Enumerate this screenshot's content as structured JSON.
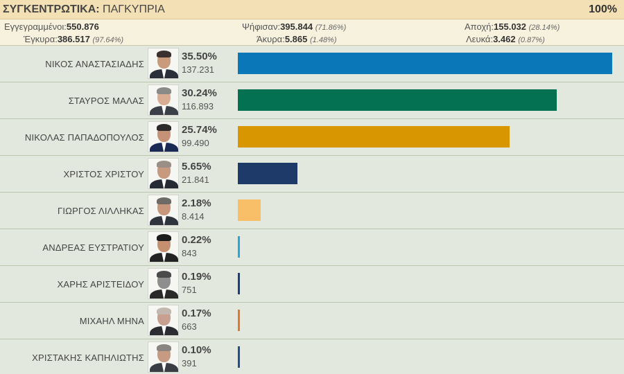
{
  "header": {
    "title_bold": "ΣΥΓΚΕΝΤΡΩΤΙΚΑ:",
    "title_region": " ΠΑΓΚΥΠΡΙΑ",
    "percent_counted": "100%"
  },
  "stats": {
    "registered_label": "Εγγεγραμμένοι:",
    "registered_value": "550.876",
    "voted_label": "Ψήφισαν:",
    "voted_value": "395.844",
    "voted_pct": "(71.86%)",
    "abstention_label": "Αποχή:",
    "abstention_value": "155.032",
    "abstention_pct": "(28.14%)",
    "valid_label": "Έγκυρα:",
    "valid_value": "386.517",
    "valid_pct": "(97.64%)",
    "invalid_label": "Άκυρα:",
    "invalid_value": "5.865",
    "invalid_pct": "(1.48%)",
    "blank_label": "Λευκά:",
    "blank_value": "3.462",
    "blank_pct": "(0.87%)"
  },
  "candidates": [
    {
      "name": "ΝΙΚΟΣ ΑΝΑΣΤΑΣΙΑΔΗΣ",
      "pct": "35.50%",
      "share": 35.5,
      "votes": "137.231",
      "color": "#0a78b8",
      "suit": "#2a2f3a",
      "skin": "#c99a7c",
      "hair": "#3a3030"
    },
    {
      "name": "ΣΤΑΥΡΟΣ ΜΑΛΑΣ",
      "pct": "30.24%",
      "share": 30.24,
      "votes": "116.893",
      "color": "#047153",
      "suit": "#3b3f47",
      "skin": "#d9ad93",
      "hair": "#8a8a88"
    },
    {
      "name": "ΝΙΚΟΛΑΣ ΠΑΠΑΔΟΠΟΥΛΟΣ",
      "pct": "25.74%",
      "share": 25.74,
      "votes": "99.490",
      "color": "#d89600",
      "suit": "#1b2a55",
      "skin": "#c69277",
      "hair": "#2c2a2a"
    },
    {
      "name": "ΧΡΙΣΤΟΣ ΧΡΙΣΤΟΥ",
      "pct": "5.65%",
      "share": 5.65,
      "votes": "21.841",
      "color": "#1e3a68",
      "suit": "#262a33",
      "skin": "#c79a80",
      "hair": "#9a8f86"
    },
    {
      "name": "ΓΙΩΡΓΟΣ ΛΙΛΛΗΚΑΣ",
      "pct": "2.18%",
      "share": 2.18,
      "votes": "8.414",
      "color": "#f8be68",
      "suit": "#30343d",
      "skin": "#c8977b",
      "hair": "#6e6a66"
    },
    {
      "name": "ΑΝΔΡΕΑΣ ΕΥΣΤΡΑΤΙΟΥ",
      "pct": "0.22%",
      "share": 0.22,
      "votes": "843",
      "color": "#27a6e0",
      "suit": "#232323",
      "skin": "#c49070",
      "hair": "#1c1c1c"
    },
    {
      "name": "ΧΑΡΗΣ ΑΡΙΣΤΕΙΔΟΥ",
      "pct": "0.19%",
      "share": 0.19,
      "votes": "751",
      "color": "#1c3e86",
      "suit": "#2a2a2a",
      "skin": "#8e8e8e",
      "hair": "#4a4a4a"
    },
    {
      "name": "ΜΙΧΑΗΛ ΜΗΝΑ",
      "pct": "0.17%",
      "share": 0.17,
      "votes": "663",
      "color": "#e2772a",
      "suit": "#2b2d33",
      "skin": "#c8a090",
      "hair": "#c2b8b0"
    },
    {
      "name": "ΧΡΙΣΤΑΚΗΣ ΚΑΠΗΛΙΩΤΗΣ",
      "pct": "0.10%",
      "share": 0.1,
      "votes": "391",
      "color": "#1f4f8c",
      "suit": "#3a3d44",
      "skin": "#c79b82",
      "hair": "#8a8580"
    }
  ]
}
